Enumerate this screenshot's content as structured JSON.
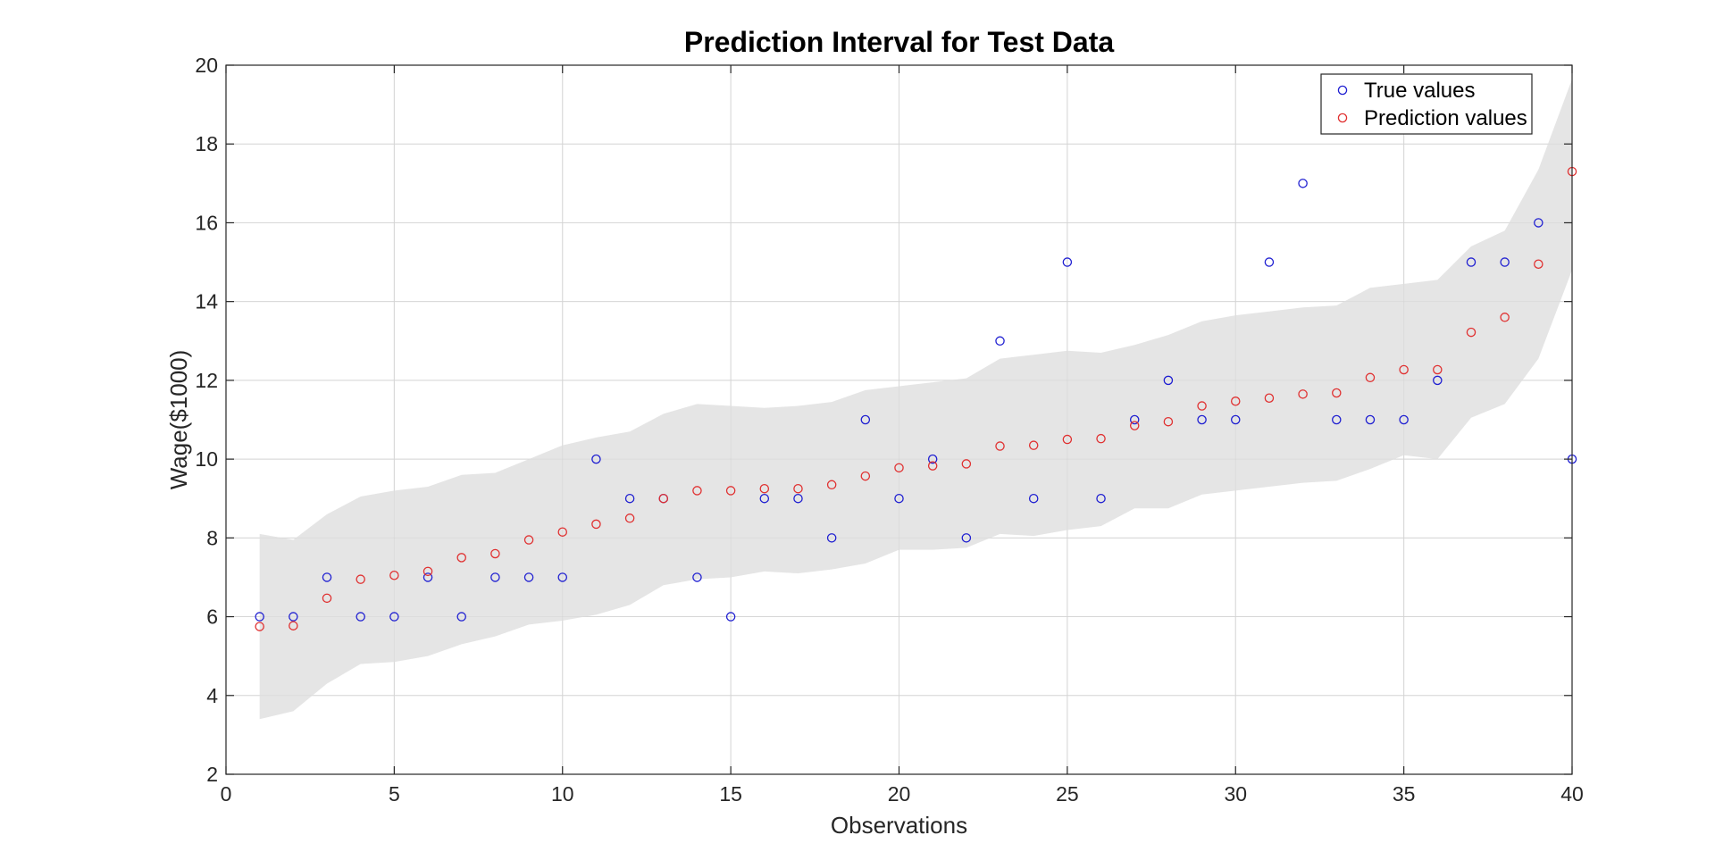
{
  "chart_data": {
    "type": "scatter",
    "title": "Prediction Interval for Test Data",
    "xlabel": "Observations",
    "ylabel": "Wage($1000)",
    "xlim": [
      0,
      40
    ],
    "ylim": [
      2,
      20
    ],
    "xticks": [
      0,
      5,
      10,
      15,
      20,
      25,
      30,
      35,
      40
    ],
    "yticks": [
      2,
      4,
      6,
      8,
      10,
      12,
      14,
      16,
      18,
      20
    ],
    "grid": true,
    "legend": {
      "placement": "top-right",
      "entries": [
        "True values",
        "Prediction values"
      ]
    },
    "colors": {
      "true": "#1f1fd1",
      "pred": "#e03030",
      "band": "#e5e5e5",
      "grid": "#dcdcdc",
      "axes": "#262626"
    },
    "x": [
      1,
      2,
      3,
      4,
      5,
      6,
      7,
      8,
      9,
      10,
      11,
      12,
      13,
      14,
      15,
      16,
      17,
      18,
      19,
      20,
      21,
      22,
      23,
      24,
      25,
      26,
      27,
      28,
      29,
      30,
      31,
      32,
      33,
      34,
      35,
      36,
      37,
      38,
      39,
      40
    ],
    "series": [
      {
        "name": "True values",
        "values": [
          6,
          6,
          7,
          6,
          6,
          7,
          6,
          7,
          7,
          7,
          10,
          9,
          9,
          7,
          6,
          9,
          9,
          8,
          11,
          9,
          10,
          8,
          13,
          9,
          15,
          9,
          11,
          12,
          11,
          11,
          15,
          17,
          11,
          11,
          11,
          12,
          15,
          15,
          16,
          10
        ]
      },
      {
        "name": "Prediction values",
        "values": [
          5.75,
          5.77,
          6.47,
          6.95,
          7.05,
          7.15,
          7.5,
          7.6,
          7.95,
          8.15,
          8.35,
          8.5,
          9.0,
          9.2,
          9.2,
          9.25,
          9.25,
          9.35,
          9.57,
          9.78,
          9.83,
          9.88,
          10.33,
          10.35,
          10.5,
          10.52,
          10.85,
          10.95,
          11.35,
          11.47,
          11.55,
          11.65,
          11.68,
          12.07,
          12.27,
          12.27,
          13.22,
          13.6,
          14.95,
          17.3
        ]
      }
    ],
    "interval": {
      "lower": [
        3.4,
        3.6,
        4.3,
        4.8,
        4.85,
        5.0,
        5.3,
        5.5,
        5.8,
        5.9,
        6.05,
        6.3,
        6.8,
        6.95,
        7.0,
        7.15,
        7.1,
        7.2,
        7.35,
        7.7,
        7.7,
        7.75,
        8.1,
        8.05,
        8.2,
        8.3,
        8.75,
        8.75,
        9.1,
        9.2,
        9.3,
        9.4,
        9.45,
        9.75,
        10.1,
        10.0,
        11.05,
        11.4,
        12.55,
        14.8
      ],
      "upper": [
        8.1,
        7.95,
        8.6,
        9.05,
        9.2,
        9.3,
        9.6,
        9.65,
        10.0,
        10.35,
        10.55,
        10.7,
        11.15,
        11.4,
        11.35,
        11.3,
        11.35,
        11.45,
        11.75,
        11.85,
        11.95,
        12.05,
        12.55,
        12.65,
        12.75,
        12.7,
        12.9,
        13.15,
        13.5,
        13.65,
        13.75,
        13.85,
        13.9,
        14.35,
        14.45,
        14.55,
        15.4,
        15.8,
        17.35,
        19.65
      ]
    }
  }
}
